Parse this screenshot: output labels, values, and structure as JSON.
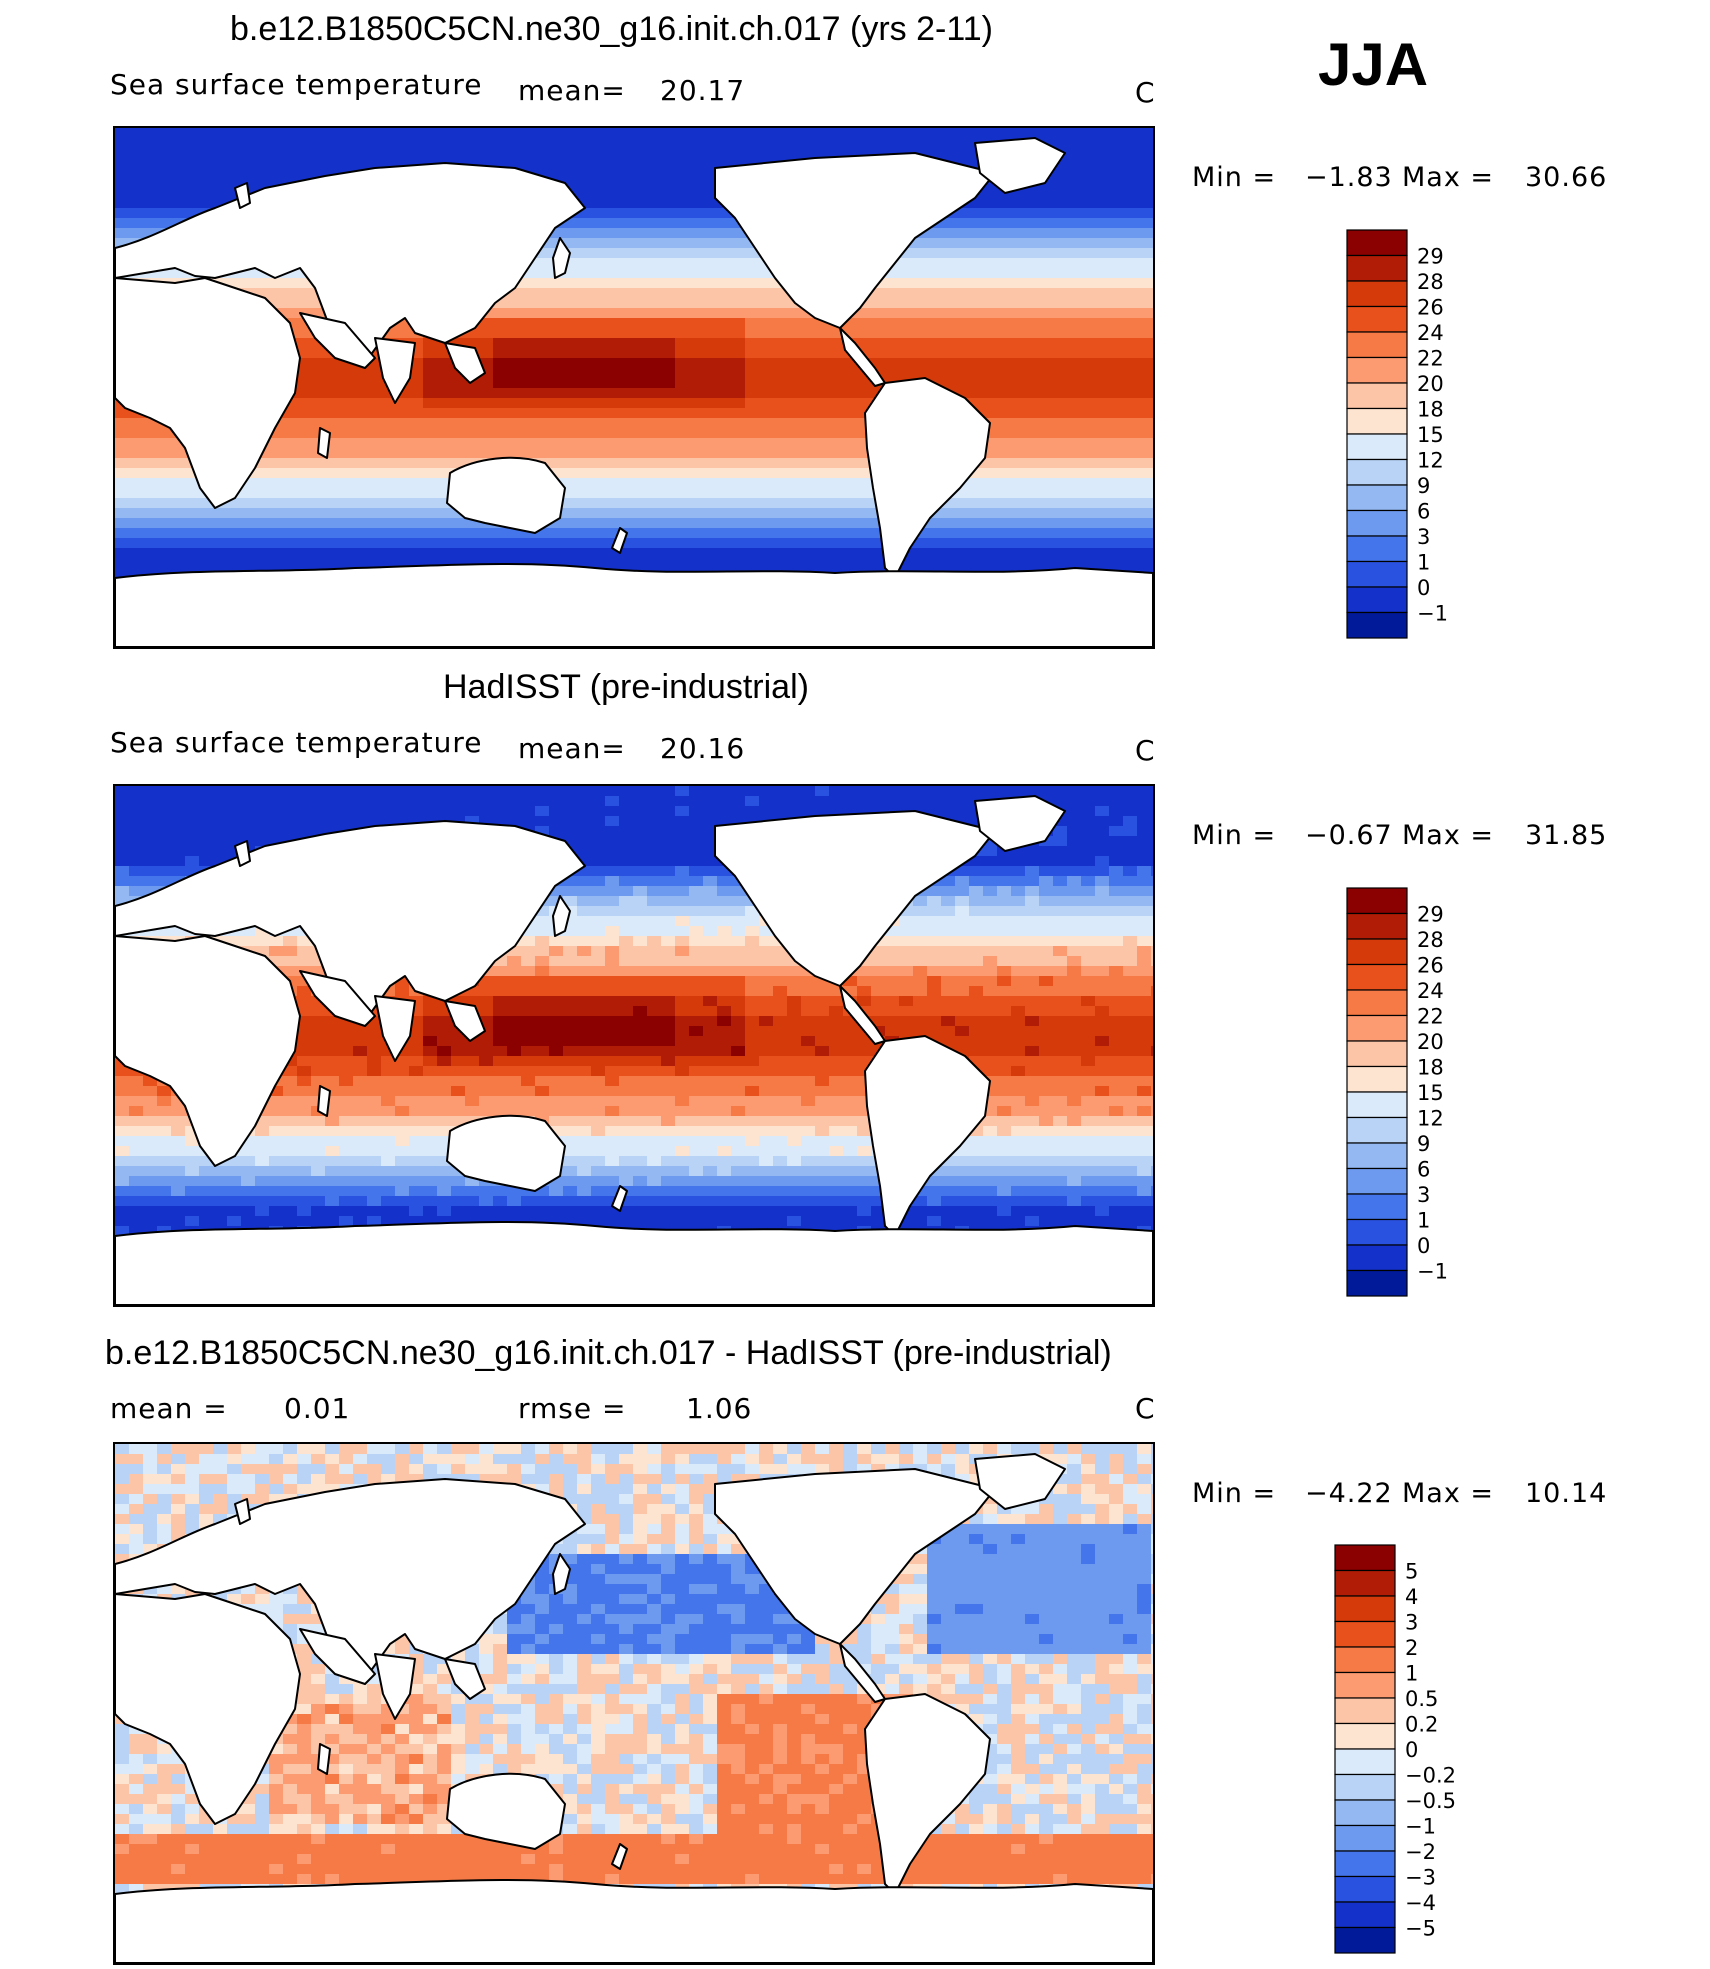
{
  "season": "JJA",
  "panels": [
    {
      "title": "b.e12.B1850C5CN.ne30_g16.init.ch.017 (yrs 2-11)",
      "left_label": "Sea surface temperature",
      "mid_label": "mean=",
      "mid_value": "20.17",
      "unit": "C",
      "min_label": "Min =",
      "min_value": "−1.83",
      "max_label": "Max =",
      "max_value": "30.66",
      "kind": "model"
    },
    {
      "title": "HadISST (pre-industrial)",
      "left_label": "Sea surface temperature",
      "mid_label": "mean=",
      "mid_value": "20.16",
      "unit": "C",
      "min_label": "Min =",
      "min_value": "−0.67",
      "max_label": "Max =",
      "max_value": "31.85",
      "kind": "obs"
    },
    {
      "title": "b.e12.B1850C5CN.ne30_g16.init.ch.017 - HadISST (pre-industrial)",
      "left_label": "mean =",
      "left_value": "0.01",
      "mid_label": "rmse =",
      "mid_value": "1.06",
      "unit": "C",
      "min_label": "Min =",
      "min_value": "−4.22",
      "max_label": "Max =",
      "max_value": "10.14",
      "kind": "diff"
    }
  ],
  "colorbars": {
    "sst": {
      "labels": [
        "29",
        "28",
        "26",
        "24",
        "22",
        "20",
        "18",
        "15",
        "12",
        "9",
        "6",
        "3",
        "1",
        "0",
        "−1"
      ],
      "colors": [
        "#8b0000",
        "#b01c05",
        "#d43a0a",
        "#e8511c",
        "#f57a45",
        "#fc9a72",
        "#fdc5a8",
        "#fde4d0",
        "#dbeafa",
        "#b9d3f7",
        "#94b9f2",
        "#6d9aee",
        "#4575ea",
        "#2a52e0",
        "#1431c9",
        "#001a9a"
      ]
    },
    "diff": {
      "labels": [
        "5",
        "4",
        "3",
        "2",
        "1",
        "0.5",
        "0.2",
        "0",
        "−0.2",
        "−0.5",
        "−1",
        "−2",
        "−3",
        "−4",
        "−5"
      ],
      "colors": [
        "#8b0000",
        "#b01c05",
        "#d43a0a",
        "#e8511c",
        "#f57a45",
        "#fc9a72",
        "#fdc5a8",
        "#fde4d0",
        "#dbeafa",
        "#b9d3f7",
        "#94b9f2",
        "#6d9aee",
        "#4575ea",
        "#2a52e0",
        "#1431c9",
        "#001a9a"
      ]
    }
  }
}
